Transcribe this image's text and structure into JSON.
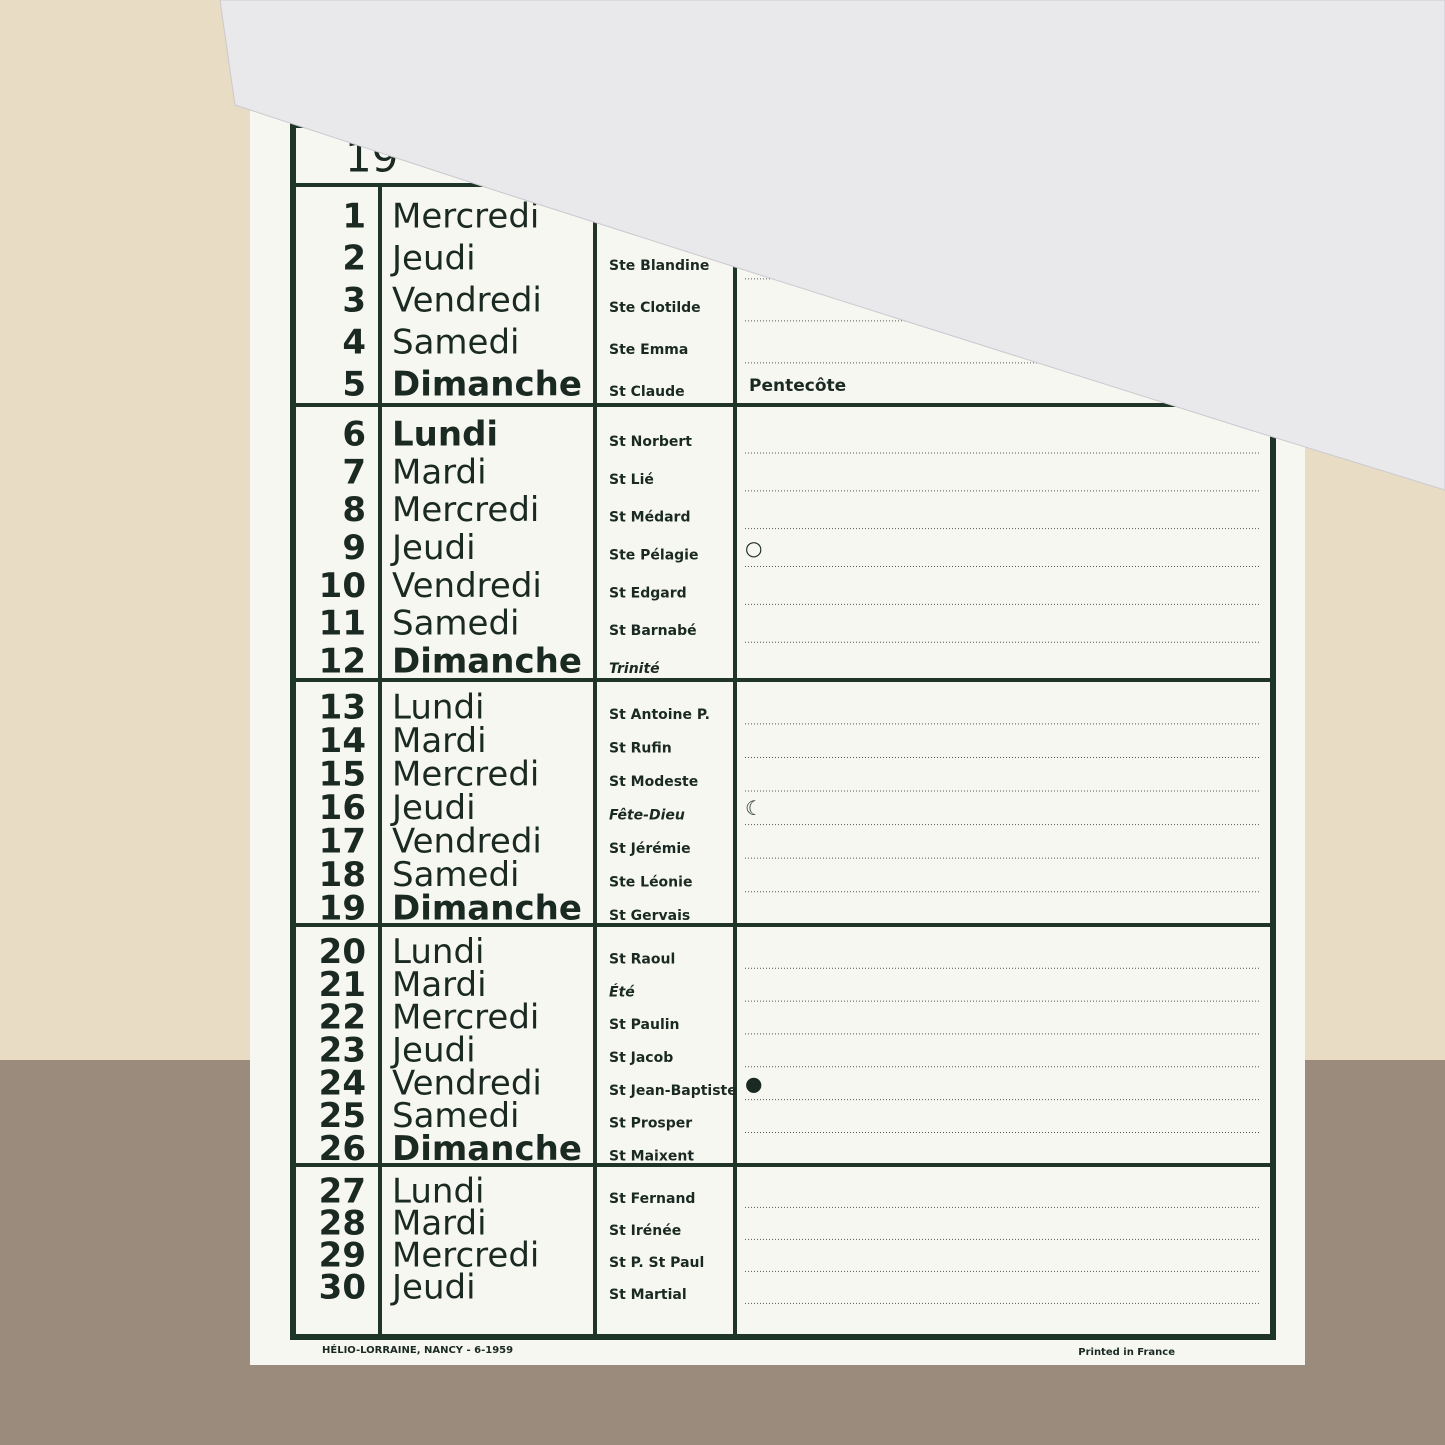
{
  "header": {
    "year": "19"
  },
  "weeks": [
    {
      "days": [
        {
          "number": "1",
          "name": "Mercredi"
        },
        {
          "number": "2",
          "name": "Jeudi",
          "saint": "Ste Blandine"
        },
        {
          "number": "3",
          "name": "Vendredi",
          "saint": "Ste Clotilde"
        },
        {
          "number": "4",
          "name": "Samedi",
          "saint": "Ste Emma"
        },
        {
          "number": "5",
          "name": "Dimanche",
          "saint": "St Claude",
          "note": "Pentecôte",
          "bold": true
        }
      ]
    },
    {
      "days": [
        {
          "number": "6",
          "name": "Lundi",
          "saint": "St Norbert",
          "bold": true
        },
        {
          "number": "7",
          "name": "Mardi",
          "saint": "St Lié"
        },
        {
          "number": "8",
          "name": "Mercredi",
          "saint": "St Médard"
        },
        {
          "number": "9",
          "name": "Jeudi",
          "saint": "Ste Pélagie",
          "moon": "○"
        },
        {
          "number": "10",
          "name": "Vendredi",
          "saint": "St Edgard"
        },
        {
          "number": "11",
          "name": "Samedi",
          "saint": "St Barnabé"
        },
        {
          "number": "12",
          "name": "Dimanche",
          "saint": "Trinité",
          "bold": true,
          "italic": true
        }
      ]
    },
    {
      "days": [
        {
          "number": "13",
          "name": "Lundi",
          "saint": "St Antoine P."
        },
        {
          "number": "14",
          "name": "Mardi",
          "saint": "St Rufin"
        },
        {
          "number": "15",
          "name": "Mercredi",
          "saint": "St Modeste"
        },
        {
          "number": "16",
          "name": "Jeudi",
          "saint": "Fête-Dieu",
          "italic": true,
          "moon": "☾"
        },
        {
          "number": "17",
          "name": "Vendredi",
          "saint": "St Jérémie"
        },
        {
          "number": "18",
          "name": "Samedi",
          "saint": "Ste Léonie"
        },
        {
          "number": "19",
          "name": "Dimanche",
          "saint": "St Gervais",
          "bold": true
        }
      ]
    },
    {
      "days": [
        {
          "number": "20",
          "name": "Lundi",
          "saint": "St Raoul"
        },
        {
          "number": "21",
          "name": "Mardi",
          "saint": "Été",
          "italic": true
        },
        {
          "number": "22",
          "name": "Mercredi",
          "saint": "St Paulin"
        },
        {
          "number": "23",
          "name": "Jeudi",
          "saint": "St Jacob"
        },
        {
          "number": "24",
          "name": "Vendredi",
          "saint": "St Jean-Baptiste",
          "moon": "●"
        },
        {
          "number": "25",
          "name": "Samedi",
          "saint": "St Prosper"
        },
        {
          "number": "26",
          "name": "Dimanche",
          "saint": "St Maixent",
          "bold": true
        }
      ]
    },
    {
      "days": [
        {
          "number": "27",
          "name": "Lundi",
          "saint": "St Fernand"
        },
        {
          "number": "28",
          "name": "Mardi",
          "saint": "St Irénée"
        },
        {
          "number": "29",
          "name": "Mercredi",
          "saint": "St P. St Paul"
        },
        {
          "number": "30",
          "name": "Jeudi",
          "saint": "St Martial"
        }
      ]
    }
  ],
  "footer": {
    "printer": "HÉLIO-LORRAINE, NANCY - 6-1959",
    "origin": "Printed in France"
  }
}
